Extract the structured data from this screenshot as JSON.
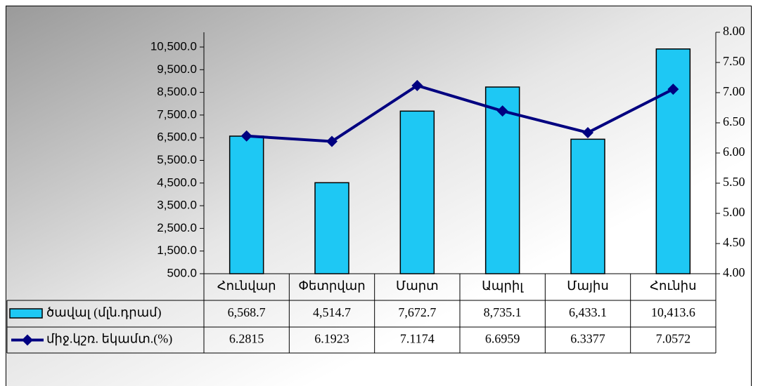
{
  "chart_data": {
    "type": "bar",
    "categories": [
      "Հունվար",
      "Փետրվար",
      "Մարտ",
      "Ապրիլ",
      "Մայիս",
      "Հունիս"
    ],
    "series": [
      {
        "name": "ծավալ (մլն.դրամ)",
        "type": "bar",
        "color": "#1ec8f4",
        "values": [
          6568.7,
          4514.7,
          7672.7,
          8735.1,
          6433.1,
          10413.6
        ],
        "value_labels": [
          "6,568.7",
          "4,514.7",
          "7,672.7",
          "8,735.1",
          "6,433.1",
          "10,413.6"
        ]
      },
      {
        "name": "միջ.կշռ. եկամտ.(%)",
        "type": "line",
        "color": "#000080",
        "axis": "y2",
        "values": [
          6.2815,
          6.1923,
          7.1174,
          6.6959,
          6.3377,
          7.0572
        ]
      }
    ],
    "ylim": [
      500,
      11150
    ],
    "yticks": [
      {
        "value": 500,
        "label": "500.0"
      },
      {
        "value": 1500,
        "label": "1,500.0"
      },
      {
        "value": 2500,
        "label": "2,500.0"
      },
      {
        "value": 3500,
        "label": "3,500.0"
      },
      {
        "value": 4500,
        "label": "4,500.0"
      },
      {
        "value": 5500,
        "label": "5,500.0"
      },
      {
        "value": 6500,
        "label": "6,500.0"
      },
      {
        "value": 7500,
        "label": "7,500.0"
      },
      {
        "value": 8500,
        "label": "8,500.0"
      },
      {
        "value": 9500,
        "label": "9,500.0"
      },
      {
        "value": 10500,
        "label": "10,500.0"
      }
    ],
    "y2lim": [
      4,
      8
    ],
    "y2ticks": [
      {
        "value": 4,
        "label": "4.00"
      },
      {
        "value": 4.5,
        "label": "4.50"
      },
      {
        "value": 5,
        "label": "5.00"
      },
      {
        "value": 5.5,
        "label": "5.50"
      },
      {
        "value": 6,
        "label": "6.00"
      },
      {
        "value": 6.5,
        "label": "6.50"
      },
      {
        "value": 7,
        "label": "7.00"
      },
      {
        "value": 7.5,
        "label": "7.50"
      },
      {
        "value": 8,
        "label": "8.00"
      }
    ]
  }
}
